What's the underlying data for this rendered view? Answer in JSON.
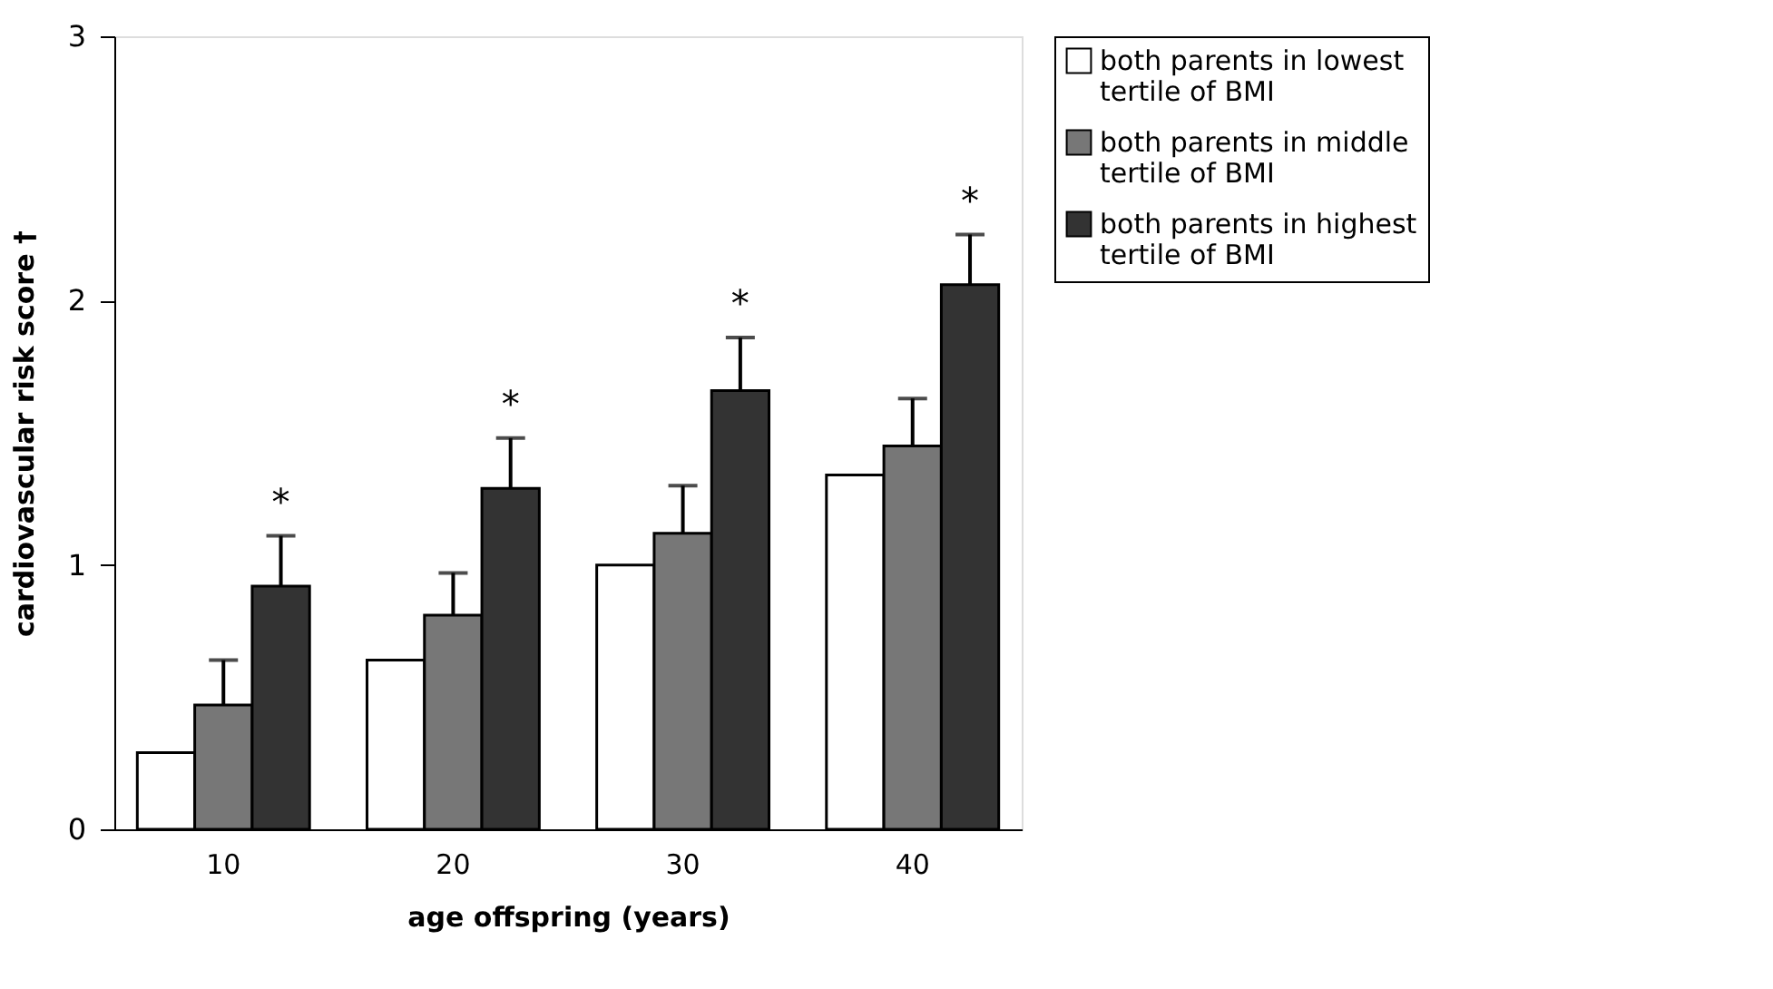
{
  "chart_data": {
    "type": "bar",
    "xlabel": "age offspring (years)",
    "ylabel": "cardiovascular risk score †",
    "categories": [
      "10",
      "20",
      "30",
      "40"
    ],
    "series": [
      {
        "name": "both parents in lowest tertile of BMI",
        "color": "#ffffff",
        "values": [
          0.29,
          0.64,
          1.0,
          1.34
        ]
      },
      {
        "name": "both parents in middle tertile of BMI",
        "color": "#777777",
        "values": [
          0.47,
          0.81,
          1.12,
          1.45
        ],
        "errors": [
          [
            0.47,
            0.64
          ],
          [
            0.81,
            0.97
          ],
          [
            1.12,
            1.3
          ],
          [
            1.45,
            1.63
          ]
        ]
      },
      {
        "name": "both parents in highest tertile of BMI",
        "color": "#333333",
        "values": [
          0.92,
          1.29,
          1.66,
          2.06
        ],
        "errors": [
          [
            0.92,
            1.11
          ],
          [
            1.29,
            1.48
          ],
          [
            1.66,
            1.86
          ],
          [
            2.06,
            2.25
          ]
        ]
      }
    ],
    "ylim": [
      0,
      3
    ],
    "yticks": [
      0,
      1,
      2,
      3
    ],
    "grid": false,
    "legend": "right",
    "annotations": [
      "*",
      "*",
      "*",
      "*"
    ]
  }
}
